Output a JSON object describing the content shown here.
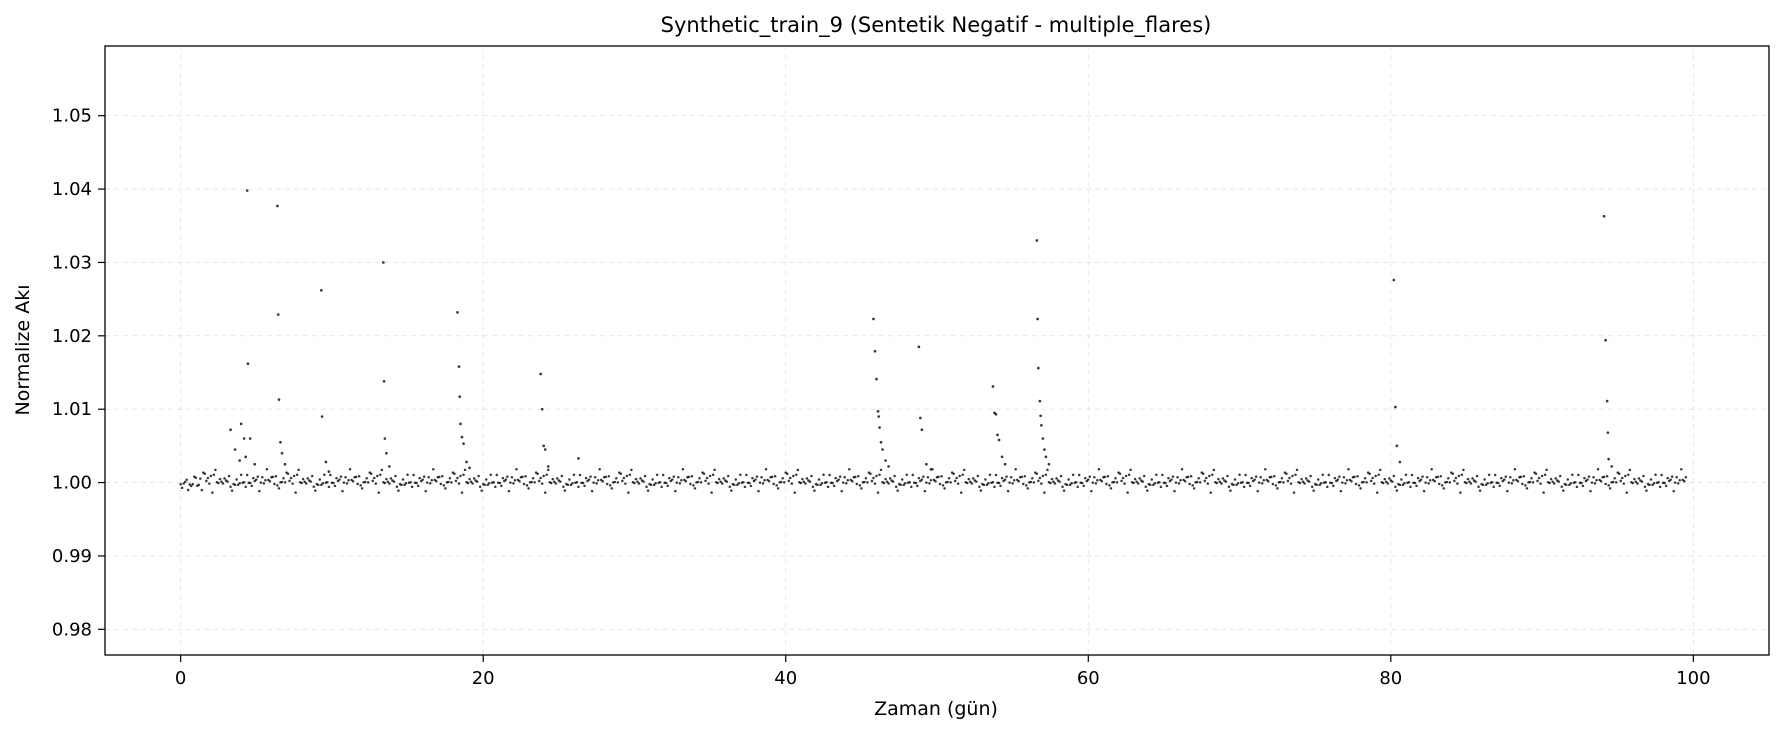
{
  "chart_data": {
    "type": "scatter",
    "title": "Synthetic_train_9 (Sentetik Negatif - multiple_flares)",
    "xlabel": "Zaman (gün)",
    "ylabel": "Normalize Akı",
    "xlim": [
      -5,
      105
    ],
    "ylim": [
      0.9765,
      1.0595
    ],
    "xticks": [
      0,
      20,
      40,
      60,
      80,
      100
    ],
    "xtick_labels": [
      "0",
      "20",
      "40",
      "60",
      "80",
      "100"
    ],
    "yticks": [
      0.98,
      0.99,
      1.0,
      1.01,
      1.02,
      1.03,
      1.04,
      1.05
    ],
    "ytick_labels": [
      "0.98",
      "0.99",
      "1.00",
      "1.01",
      "1.02",
      "1.03",
      "1.04",
      "1.05"
    ],
    "grid": true,
    "marker_color": "#000000",
    "baseline": {
      "x_start": 0,
      "x_end": 99.5,
      "x_step": 0.1,
      "y_center": 1.0,
      "y_scatter": 0.0015,
      "note_on_data": "dense baseline points near 1.000 across the full time range"
    },
    "flare_points": [
      [
        3.3,
        1.0072
      ],
      [
        3.6,
        1.0045
      ],
      [
        3.9,
        1.003
      ],
      [
        4.0,
        1.008
      ],
      [
        4.2,
        1.006
      ],
      [
        4.3,
        1.0035
      ],
      [
        4.4,
        1.0398
      ],
      [
        4.45,
        1.0162
      ],
      [
        4.6,
        1.006
      ],
      [
        4.9,
        1.0025
      ],
      [
        6.4,
        1.0377
      ],
      [
        6.45,
        1.0229
      ],
      [
        6.5,
        1.0113
      ],
      [
        6.6,
        1.0055
      ],
      [
        6.7,
        1.004
      ],
      [
        6.9,
        1.0025
      ],
      [
        9.3,
        1.0262
      ],
      [
        9.35,
        1.009
      ],
      [
        9.6,
        1.0028
      ],
      [
        9.8,
        1.0015
      ],
      [
        13.4,
        1.03
      ],
      [
        13.45,
        1.0138
      ],
      [
        13.5,
        1.006
      ],
      [
        13.6,
        1.004
      ],
      [
        13.8,
        1.0022
      ],
      [
        18.3,
        1.0232
      ],
      [
        18.4,
        1.0158
      ],
      [
        18.45,
        1.0117
      ],
      [
        18.5,
        1.008
      ],
      [
        18.6,
        1.0062
      ],
      [
        18.7,
        1.0053
      ],
      [
        18.9,
        1.0028
      ],
      [
        19.1,
        1.002
      ],
      [
        23.8,
        1.0148
      ],
      [
        23.9,
        1.01
      ],
      [
        24.0,
        1.005
      ],
      [
        24.1,
        1.0045
      ],
      [
        24.3,
        1.0022
      ],
      [
        26.3,
        1.0033
      ],
      [
        45.8,
        1.0223
      ],
      [
        45.9,
        1.0179
      ],
      [
        46.0,
        1.0141
      ],
      [
        46.1,
        1.0097
      ],
      [
        46.15,
        1.009
      ],
      [
        46.2,
        1.0075
      ],
      [
        46.3,
        1.0055
      ],
      [
        46.4,
        1.0045
      ],
      [
        46.6,
        1.003
      ],
      [
        46.8,
        1.0022
      ],
      [
        48.8,
        1.0185
      ],
      [
        48.9,
        1.0088
      ],
      [
        49.0,
        1.0072
      ],
      [
        49.3,
        1.0025
      ],
      [
        49.6,
        1.0018
      ],
      [
        53.7,
        1.0131
      ],
      [
        53.8,
        1.0095
      ],
      [
        53.9,
        1.0093
      ],
      [
        54.0,
        1.0065
      ],
      [
        54.1,
        1.0058
      ],
      [
        54.3,
        1.0035
      ],
      [
        54.5,
        1.0025
      ],
      [
        56.6,
        1.033
      ],
      [
        56.65,
        1.0223
      ],
      [
        56.7,
        1.0156
      ],
      [
        56.8,
        1.0111
      ],
      [
        56.85,
        1.0091
      ],
      [
        56.9,
        1.0078
      ],
      [
        57.0,
        1.006
      ],
      [
        57.1,
        1.0045
      ],
      [
        57.2,
        1.0035
      ],
      [
        57.4,
        1.0025
      ],
      [
        80.2,
        1.0276
      ],
      [
        80.3,
        1.0103
      ],
      [
        80.4,
        1.005
      ],
      [
        80.6,
        1.0028
      ],
      [
        94.1,
        1.0363
      ],
      [
        94.2,
        1.0194
      ],
      [
        94.3,
        1.0111
      ],
      [
        94.35,
        1.0068
      ],
      [
        94.4,
        1.0032
      ],
      [
        94.6,
        1.0022
      ]
    ]
  }
}
